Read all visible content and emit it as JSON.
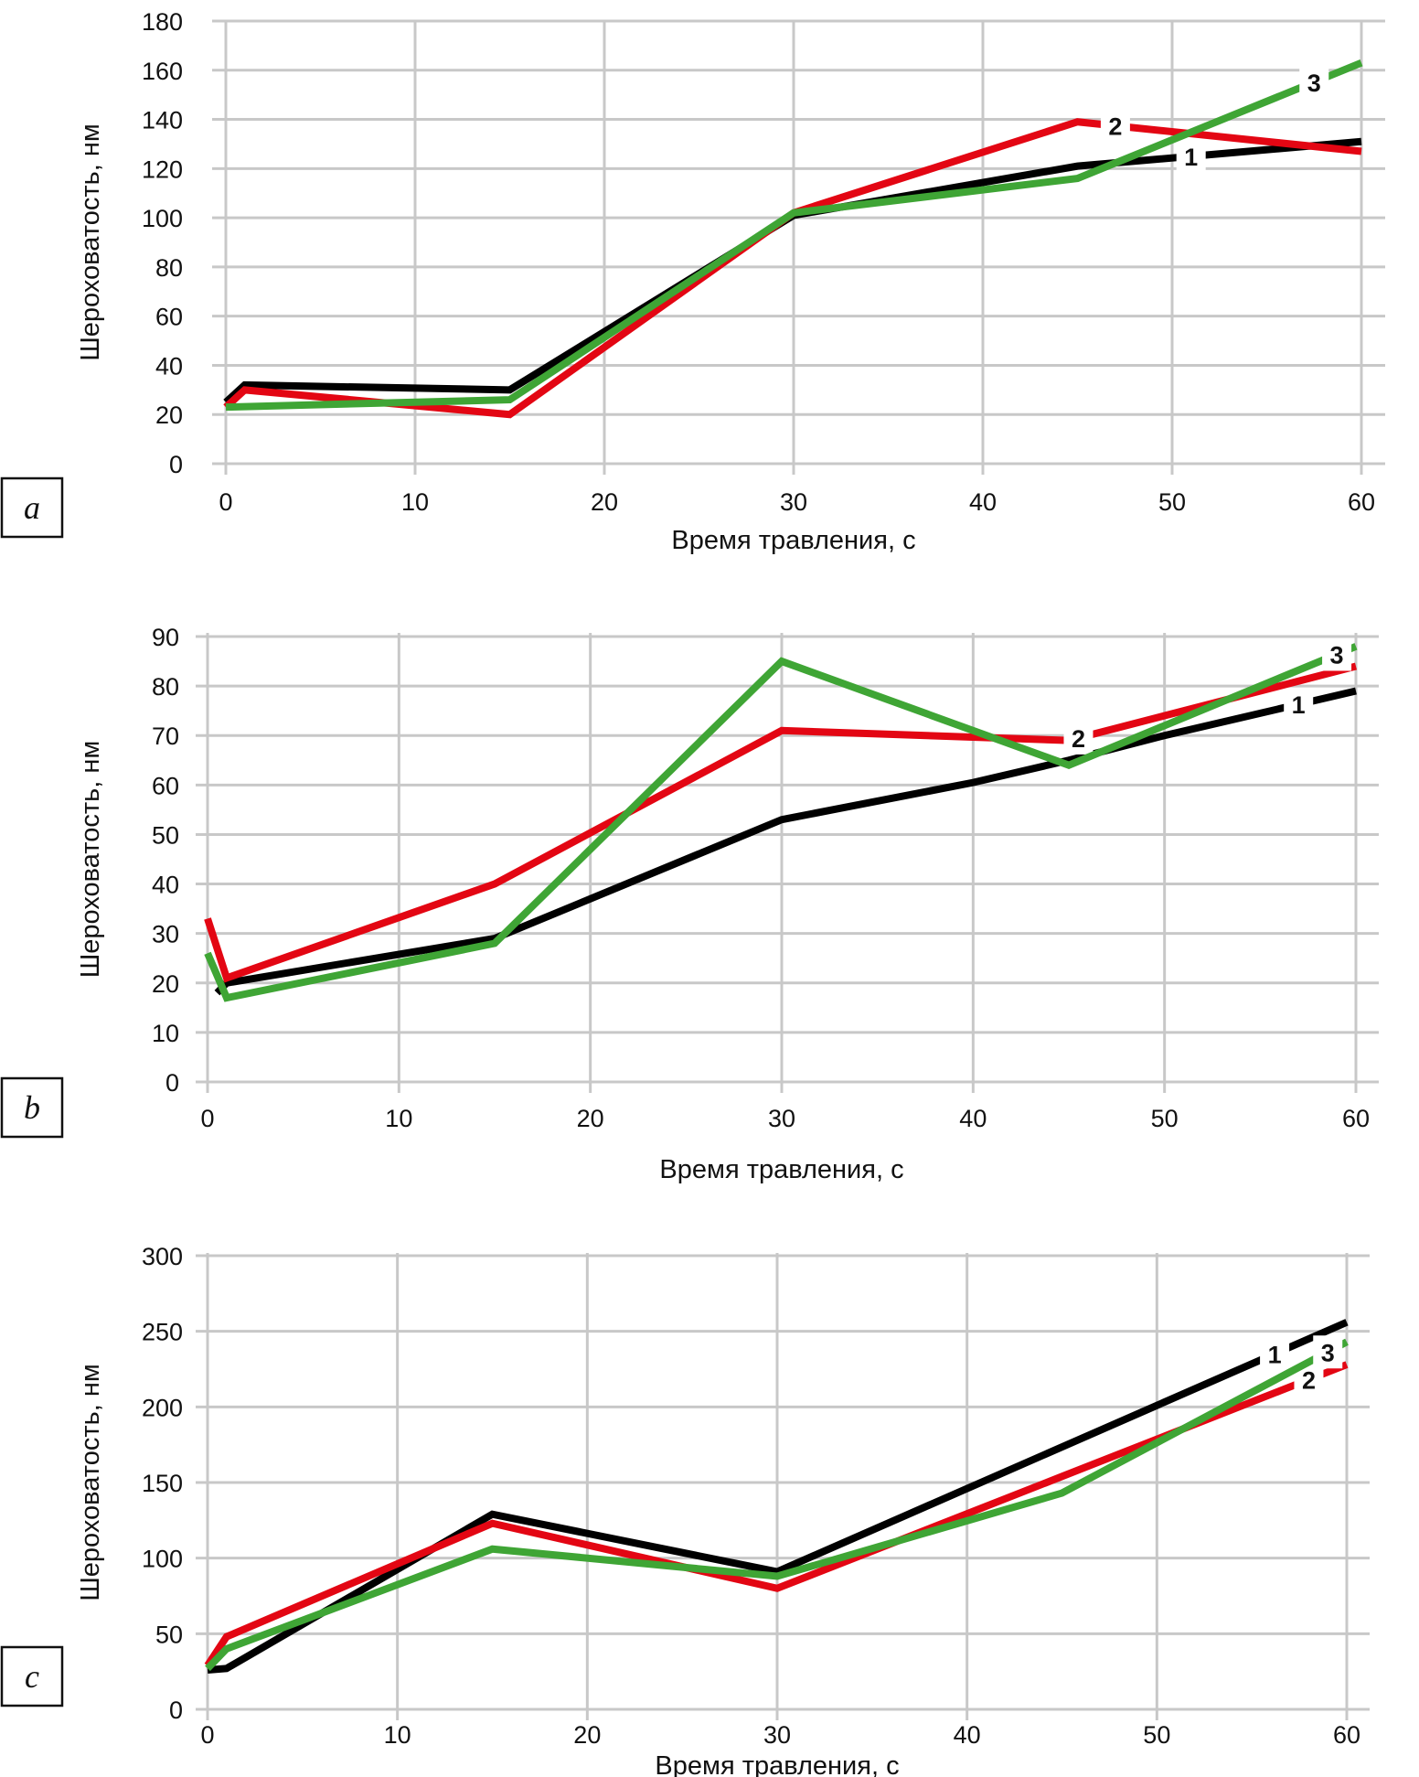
{
  "colors": {
    "series_1": "#000000",
    "series_2": "#e30613",
    "series_3": "#3fa535",
    "grid": "#c8c8c8"
  },
  "chart_data": [
    {
      "type": "line",
      "panel": "a",
      "title": "",
      "xlabel": "Время травления, с",
      "ylabel": "Шероховатость, нм",
      "xlim": [
        0,
        60
      ],
      "ylim": [
        0,
        180
      ],
      "x_ticks": [
        0,
        10,
        20,
        30,
        40,
        50,
        60
      ],
      "y_ticks": [
        0,
        20,
        40,
        60,
        80,
        100,
        120,
        140,
        160,
        180
      ],
      "grid": true,
      "series": [
        {
          "name": "1",
          "color_key": "series_1",
          "x": [
            0,
            1,
            15,
            30,
            45,
            60
          ],
          "y": [
            25,
            32,
            30,
            101,
            121,
            131
          ],
          "label_at": 51
        },
        {
          "name": "2",
          "color_key": "series_2",
          "x": [
            0,
            1,
            15,
            30,
            45,
            60
          ],
          "y": [
            23,
            30,
            20,
            102,
            139,
            127
          ],
          "label_at": 47
        },
        {
          "name": "3",
          "color_key": "series_3",
          "x": [
            0,
            15,
            30,
            45,
            60
          ],
          "y": [
            23,
            26,
            102,
            116,
            163
          ],
          "label_at": 57.5
        }
      ]
    },
    {
      "type": "line",
      "panel": "b",
      "title": "",
      "xlabel": "Время травления, с",
      "ylabel": "Шероховатость, нм",
      "xlim": [
        0,
        60
      ],
      "ylim": [
        0,
        90
      ],
      "x_ticks": [
        0,
        10,
        20,
        30,
        40,
        50,
        60
      ],
      "y_ticks": [
        0,
        10,
        20,
        30,
        40,
        50,
        60,
        70,
        80,
        90
      ],
      "grid": true,
      "series": [
        {
          "name": "1",
          "color_key": "series_1",
          "x": [
            0.5,
            1,
            15,
            30,
            40,
            45,
            50,
            60
          ],
          "y": [
            18,
            20,
            29,
            53,
            60.5,
            65,
            70,
            79
          ],
          "label_at": 57
        },
        {
          "name": "2",
          "color_key": "series_2",
          "x": [
            0,
            1,
            15,
            30,
            45,
            60
          ],
          "y": [
            33,
            21,
            40,
            71,
            69,
            84
          ],
          "label_at": 45.5
        },
        {
          "name": "3",
          "color_key": "series_3",
          "x": [
            0,
            1,
            15,
            30,
            45,
            60
          ],
          "y": [
            26,
            17,
            28,
            85,
            64,
            88
          ],
          "label_at": 59
        }
      ]
    },
    {
      "type": "line",
      "panel": "c",
      "title": "",
      "xlabel": "Время травления, с",
      "ylabel": "Шероховатость, нм",
      "xlim": [
        0,
        60
      ],
      "ylim": [
        0,
        300
      ],
      "x_ticks": [
        0,
        10,
        20,
        30,
        40,
        50,
        60
      ],
      "y_ticks": [
        0,
        50,
        100,
        150,
        200,
        250,
        300
      ],
      "grid": true,
      "series": [
        {
          "name": "1",
          "color_key": "series_1",
          "x": [
            0,
            1,
            15,
            30,
            60
          ],
          "y": [
            26,
            27,
            129,
            91,
            256
          ],
          "label_at": 56.2
        },
        {
          "name": "2",
          "color_key": "series_2",
          "x": [
            0,
            1,
            15,
            30,
            45,
            60
          ],
          "y": [
            29,
            48,
            123,
            80,
            154,
            228
          ],
          "label_at": 58
        },
        {
          "name": "3",
          "color_key": "series_3",
          "x": [
            0,
            1,
            15,
            30,
            45,
            60
          ],
          "y": [
            27,
            40,
            106,
            88,
            143,
            243
          ],
          "label_at": 59
        }
      ]
    }
  ]
}
